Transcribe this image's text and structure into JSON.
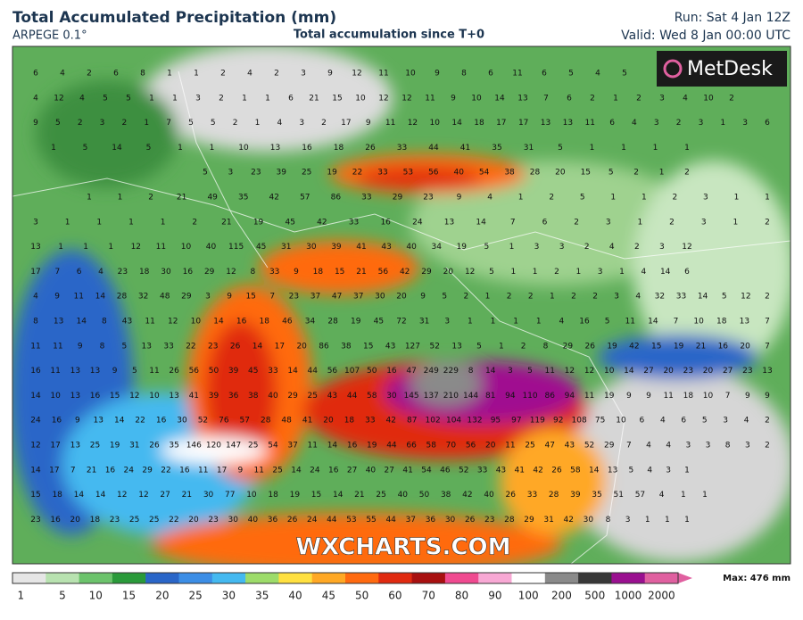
{
  "header": {
    "title": "Total Accumulated Precipitation (mm)",
    "model": "ARPEGE 0.1°",
    "subtitle": "Total accumulation since T+0",
    "run": "Run: Sat 4 Jan 12Z",
    "valid": "Valid: Wed 8 Jan 00:00 UTC"
  },
  "logo": "MetDesk",
  "watermark": "WXCHARTS.COM",
  "map": {
    "rows": [
      [
        6,
        4,
        2,
        6,
        8,
        1,
        1,
        2,
        4,
        2,
        3,
        9,
        12,
        11,
        10,
        9,
        8,
        6,
        11,
        6,
        5,
        4,
        5
      ],
      [
        4,
        12,
        4,
        5,
        5,
        1,
        1,
        3,
        2,
        1,
        1,
        6,
        21,
        15,
        10,
        12,
        12,
        11,
        9,
        10,
        14,
        13,
        7,
        6,
        2,
        1,
        2,
        3,
        4,
        10,
        2
      ],
      [
        9,
        5,
        2,
        3,
        2,
        1,
        7,
        5,
        5,
        2,
        1,
        4,
        3,
        2,
        17,
        9,
        11,
        12,
        10,
        14,
        18,
        17,
        17,
        13,
        13,
        11,
        6,
        4,
        3,
        2,
        3,
        1,
        3,
        6
      ],
      [
        1,
        5,
        14,
        5,
        1,
        1,
        10,
        13,
        16,
        18,
        26,
        33,
        44,
        41,
        35,
        31,
        5,
        1,
        1,
        1,
        1
      ],
      [
        5,
        3,
        23,
        39,
        25,
        19,
        22,
        33,
        53,
        56,
        40,
        54,
        38,
        28,
        20,
        15,
        5,
        2,
        1,
        2
      ],
      [
        1,
        1,
        2,
        21,
        49,
        35,
        42,
        57,
        86,
        33,
        29,
        23,
        9,
        4,
        1,
        2,
        5,
        1,
        1,
        2,
        3,
        1,
        1
      ],
      [
        3,
        1,
        1,
        1,
        1,
        2,
        21,
        19,
        45,
        42,
        33,
        16,
        24,
        13,
        14,
        7,
        6,
        2,
        3,
        1,
        2,
        3,
        1,
        2
      ],
      [
        13,
        1,
        1,
        1,
        12,
        11,
        10,
        40,
        115,
        45,
        31,
        30,
        39,
        41,
        43,
        40,
        34,
        19,
        5,
        1,
        3,
        3,
        2,
        4,
        2,
        3,
        12
      ],
      [
        17,
        7,
        6,
        4,
        23,
        18,
        30,
        16,
        29,
        12,
        8,
        33,
        9,
        18,
        15,
        21,
        56,
        42,
        29,
        20,
        12,
        5,
        1,
        1,
        2,
        1,
        3,
        1,
        4,
        14,
        6
      ],
      [
        4,
        9,
        11,
        14,
        28,
        32,
        48,
        29,
        3,
        9,
        15,
        7,
        23,
        37,
        47,
        37,
        30,
        20,
        9,
        5,
        2,
        1,
        2,
        2,
        1,
        2,
        2,
        3,
        4,
        32,
        33,
        14,
        5,
        12,
        2
      ],
      [
        8,
        13,
        14,
        8,
        43,
        11,
        12,
        10,
        14,
        16,
        18,
        46,
        34,
        28,
        19,
        45,
        72,
        31,
        3,
        1,
        1,
        1,
        1,
        4,
        16,
        5,
        11,
        14,
        7,
        10,
        18,
        13,
        7
      ],
      [
        11,
        11,
        9,
        8,
        5,
        13,
        33,
        22,
        23,
        26,
        14,
        17,
        20,
        86,
        38,
        15,
        43,
        127,
        52,
        13,
        5,
        1,
        2,
        8,
        29,
        26,
        19,
        42,
        15,
        19,
        21,
        16,
        20,
        7
      ],
      [
        16,
        11,
        13,
        13,
        9,
        5,
        11,
        26,
        56,
        50,
        39,
        45,
        33,
        14,
        44,
        56,
        107,
        50,
        16,
        47,
        249,
        229,
        8,
        14,
        3,
        5,
        11,
        12,
        12,
        10,
        14,
        27,
        20,
        23,
        20,
        27,
        23,
        13
      ],
      [
        14,
        10,
        13,
        16,
        15,
        12,
        10,
        13,
        41,
        39,
        36,
        38,
        40,
        29,
        25,
        43,
        44,
        58,
        30,
        145,
        137,
        210,
        144,
        81,
        94,
        110,
        86,
        94,
        11,
        19,
        9,
        9,
        11,
        18,
        10,
        7,
        9,
        9
      ],
      [
        24,
        16,
        9,
        13,
        14,
        22,
        16,
        30,
        52,
        76,
        57,
        28,
        48,
        41,
        20,
        18,
        33,
        42,
        87,
        102,
        104,
        132,
        95,
        97,
        119,
        92,
        108,
        75,
        10,
        6,
        4,
        6,
        5,
        3,
        4,
        2
      ],
      [
        12,
        17,
        13,
        25,
        19,
        31,
        26,
        35,
        146,
        120,
        147,
        25,
        54,
        37,
        11,
        14,
        16,
        19,
        44,
        66,
        58,
        70,
        56,
        20,
        11,
        25,
        47,
        43,
        52,
        29,
        7,
        4,
        4,
        3,
        3,
        8,
        3,
        2
      ],
      [
        14,
        17,
        7,
        21,
        16,
        24,
        29,
        22,
        16,
        11,
        17,
        9,
        11,
        25,
        14,
        24,
        16,
        27,
        40,
        27,
        41,
        54,
        46,
        52,
        33,
        43,
        41,
        42,
        26,
        58,
        14,
        13,
        5,
        4,
        3,
        1
      ],
      [
        15,
        18,
        14,
        14,
        12,
        12,
        27,
        21,
        30,
        77,
        10,
        18,
        19,
        15,
        14,
        21,
        25,
        40,
        50,
        38,
        42,
        40,
        26,
        33,
        28,
        39,
        35,
        51,
        57,
        4,
        1,
        1
      ],
      [
        23,
        16,
        20,
        18,
        23,
        25,
        25,
        22,
        20,
        23,
        30,
        40,
        36,
        26,
        24,
        44,
        53,
        55,
        44,
        37,
        36,
        30,
        26,
        23,
        28,
        29,
        31,
        42,
        30,
        8,
        3,
        1,
        1,
        1
      ]
    ]
  },
  "legend": {
    "ticks": [
      1,
      5,
      10,
      15,
      20,
      25,
      30,
      35,
      40,
      45,
      50,
      60,
      70,
      80,
      90,
      100,
      200,
      500,
      1000,
      2000
    ],
    "colors": [
      "#e6e6e6",
      "#b8e2b0",
      "#6cc36c",
      "#2a9a3a",
      "#2a66c8",
      "#3c8ee6",
      "#44b9f0",
      "#9ddc6a",
      "#ffe040",
      "#ffa825",
      "#ff6a10",
      "#e02a10",
      "#a81010",
      "#f04a90",
      "#f8a8d4",
      "#ffffff",
      "#8a8a8a",
      "#383838",
      "#9a1090",
      "#e060a0"
    ],
    "max": "Max: 476 mm"
  }
}
